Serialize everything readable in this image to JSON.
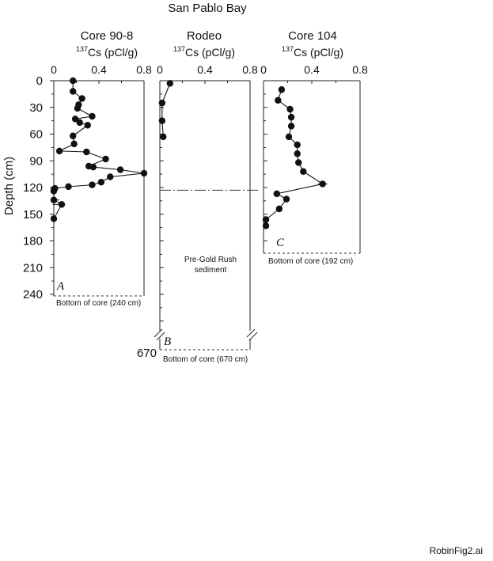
{
  "chart_data": {
    "type": "scatter",
    "title": "San Pablo Bay",
    "ylabel": "Depth (cm)",
    "y_ticks": [
      "0",
      "30",
      "60",
      "90",
      "120",
      "150",
      "180",
      "210",
      "240"
    ],
    "y_break_label": "670",
    "panels": [
      {
        "letter": "A",
        "name": "Core 90-8",
        "x_unit": "Cs (pCl/g)",
        "x_isotope": "137",
        "x_ticks": [
          "0",
          "0.4",
          "0.8"
        ],
        "xlim": [
          0,
          0.8
        ],
        "ylim": [
          0,
          240
        ],
        "x": [
          0.17,
          0.17,
          0.25,
          0.22,
          0.21,
          0.34,
          0.19,
          0.23,
          0.3,
          0.17,
          0.18,
          0.05,
          0.29,
          0.46,
          0.31,
          0.35,
          0.59,
          0.8,
          0.5,
          0.42,
          0.34,
          0.13,
          0.01,
          0.0,
          0.0,
          0.0,
          0.07,
          0.0
        ],
        "y": [
          0,
          12,
          20,
          27,
          31,
          40,
          43,
          47,
          50,
          62,
          71,
          79,
          80,
          88,
          96,
          97,
          100,
          104,
          108,
          114,
          117,
          119,
          121,
          123,
          124,
          134,
          139,
          155
        ],
        "bottom_note": "Bottom of core  (240 cm)"
      },
      {
        "letter": "B",
        "name": "Rodeo",
        "x_unit": "Cs (pCl/g)",
        "x_isotope": "137",
        "x_ticks": [
          "0",
          "0.4",
          "0.8"
        ],
        "xlim": [
          0,
          0.8
        ],
        "ylim": [
          0,
          240
        ],
        "x": [
          0.09,
          0.02,
          0.02,
          0.03
        ],
        "y": [
          3,
          25,
          45,
          63
        ],
        "annotation": [
          "Pre-Gold Rush",
          "sediment"
        ],
        "boundary_depth": 123,
        "bottom_note": "Bottom of core (670 cm)"
      },
      {
        "letter": "C",
        "name": "Core 104",
        "x_unit": "Cs (pCl/g)",
        "x_isotope": "137",
        "x_ticks": [
          "0",
          "0.4",
          "0.8"
        ],
        "xlim": [
          0,
          0.8
        ],
        "ylim": [
          0,
          240
        ],
        "x": [
          0.15,
          0.12,
          0.22,
          0.23,
          0.23,
          0.21,
          0.28,
          0.28,
          0.29,
          0.33,
          0.49,
          0.11,
          0.19,
          0.13,
          0.02,
          0.02
        ],
        "y": [
          10,
          22,
          32,
          41,
          51,
          63,
          72,
          82,
          92,
          102,
          116,
          127,
          133,
          144,
          156,
          163
        ],
        "bottom_note": "Bottom of core (192 cm)"
      }
    ],
    "grid": false,
    "legend": "none"
  },
  "filename": "RobinFig2.ai"
}
